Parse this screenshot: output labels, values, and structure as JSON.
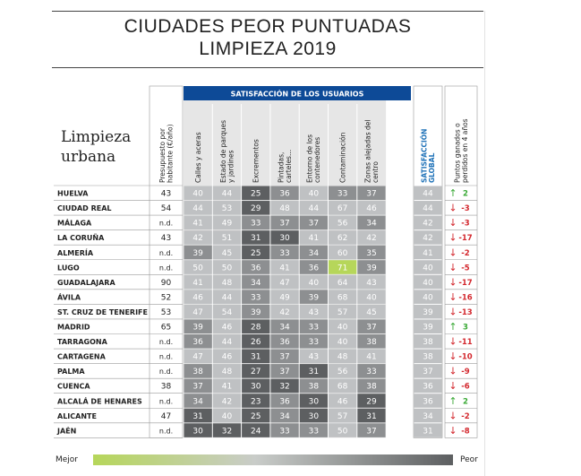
{
  "header": {
    "title_line1": "CIUDADES PEOR PUNTUADAS",
    "title_line2_text": "LIMPIEZA",
    "title_line2_year": "2019"
  },
  "section_label": {
    "line1": "Limpieza",
    "line2": "urbana"
  },
  "legend": {
    "better": "Mejor",
    "worse": "Peor"
  },
  "colors": {
    "header_blue": "#0d4a97",
    "accent_blue": "#1f72b8",
    "cell_dark": "#5d5f61",
    "cell_mid": "#8d8f91",
    "cell_light": "#bfc1c3",
    "cell_best": "#b6d65a",
    "trend_up": "#39a935",
    "trend_down": "#d3282e"
  },
  "chart_data": {
    "type": "table",
    "group_header": "SATISFACCIÓN DE LOS USUARIOS",
    "budget_header": "Presupuesto por habitante (€/año)",
    "categories_header": [
      "Calles y aceras",
      "Estado de parques y jardines",
      "Excrementos",
      "Pintadas, carteles...",
      "Entorno de los contenedores",
      "Contaminación",
      "Zonas alejadas del centro"
    ],
    "global_header": "SATISFACCIÓN GLOBAL",
    "change_header": "Puntos ganados o perdidos en 4 años",
    "rows": [
      {
        "city": "HUELVA",
        "budget": "43",
        "values": [
          40,
          44,
          25,
          36,
          40,
          33,
          37
        ],
        "global": 44,
        "change": "2",
        "trend": "up"
      },
      {
        "city": "CIUDAD REAL",
        "budget": "54",
        "values": [
          44,
          53,
          29,
          48,
          44,
          67,
          46
        ],
        "global": 44,
        "change": "-3",
        "trend": "down"
      },
      {
        "city": "MÁLAGA",
        "budget": "n.d.",
        "values": [
          41,
          49,
          33,
          37,
          37,
          56,
          34
        ],
        "global": 42,
        "change": "-3",
        "trend": "down"
      },
      {
        "city": "LA CORUÑA",
        "budget": "43",
        "values": [
          42,
          51,
          31,
          30,
          41,
          62,
          42
        ],
        "global": 42,
        "change": "-17",
        "trend": "down"
      },
      {
        "city": "ALMERÍA",
        "budget": "n.d.",
        "values": [
          39,
          45,
          25,
          33,
          34,
          60,
          35
        ],
        "global": 41,
        "change": "-2",
        "trend": "down"
      },
      {
        "city": "LUGO",
        "budget": "n.d.",
        "values": [
          50,
          50,
          36,
          41,
          36,
          71,
          39
        ],
        "global": 40,
        "change": "-5",
        "trend": "down"
      },
      {
        "city": "GUADALAJARA",
        "budget": "90",
        "values": [
          41,
          48,
          34,
          47,
          40,
          64,
          43
        ],
        "global": 40,
        "change": "-17",
        "trend": "down"
      },
      {
        "city": "ÁVILA",
        "budget": "52",
        "values": [
          46,
          44,
          33,
          49,
          39,
          68,
          40
        ],
        "global": 40,
        "change": "-16",
        "trend": "down"
      },
      {
        "city": "ST. CRUZ DE TENERIFE",
        "budget": "53",
        "values": [
          47,
          54,
          39,
          42,
          43,
          57,
          45
        ],
        "global": 39,
        "change": "-13",
        "trend": "down"
      },
      {
        "city": "MADRID",
        "budget": "65",
        "values": [
          39,
          46,
          28,
          34,
          33,
          40,
          37
        ],
        "global": 39,
        "change": "3",
        "trend": "up"
      },
      {
        "city": "TARRAGONA",
        "budget": "n.d.",
        "values": [
          36,
          44,
          26,
          36,
          33,
          40,
          38
        ],
        "global": 38,
        "change": "-11",
        "trend": "down"
      },
      {
        "city": "CARTAGENA",
        "budget": "n.d.",
        "values": [
          47,
          46,
          31,
          37,
          43,
          48,
          41
        ],
        "global": 38,
        "change": "-10",
        "trend": "down"
      },
      {
        "city": "PALMA",
        "budget": "n.d.",
        "values": [
          38,
          48,
          27,
          37,
          31,
          56,
          33
        ],
        "global": 37,
        "change": "-9",
        "trend": "down"
      },
      {
        "city": "CUENCA",
        "budget": "38",
        "values": [
          37,
          41,
          30,
          32,
          38,
          68,
          38
        ],
        "global": 36,
        "change": "-6",
        "trend": "down"
      },
      {
        "city": "ALCALÁ DE HENARES",
        "budget": "n.d.",
        "values": [
          34,
          42,
          23,
          36,
          30,
          46,
          29
        ],
        "global": 36,
        "change": "2",
        "trend": "up"
      },
      {
        "city": "ALICANTE",
        "budget": "47",
        "values": [
          31,
          40,
          25,
          34,
          30,
          57,
          31
        ],
        "global": 34,
        "change": "-2",
        "trend": "down"
      },
      {
        "city": "JAÉN",
        "budget": "n.d.",
        "values": [
          30,
          32,
          24,
          33,
          33,
          50,
          37
        ],
        "global": 31,
        "change": "-8",
        "trend": "down"
      }
    ]
  }
}
